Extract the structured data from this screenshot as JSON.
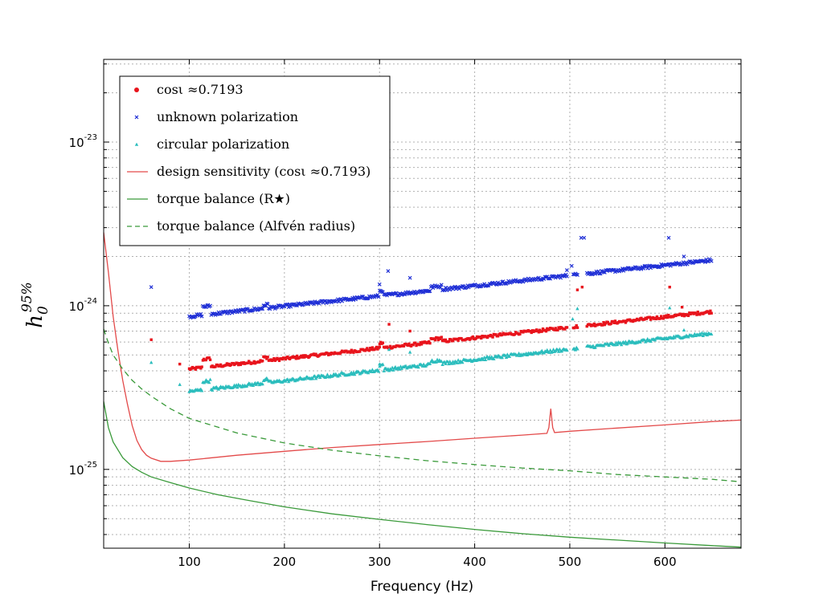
{
  "chart_data": {
    "type": "scatter",
    "xlabel": "Frequency (Hz)",
    "ylabel": {
      "base": "h",
      "sub": "0",
      "sup": "95%"
    },
    "xlim": [
      10,
      680
    ],
    "ylim": [
      3.3e-26,
      3.2e-23
    ],
    "yscale": "log",
    "grid": true,
    "legend_position": "top-left",
    "x_ticks": [
      100,
      200,
      300,
      400,
      500,
      600
    ],
    "y_ticks": [
      {
        "value": 1e-23,
        "mantissa": "10",
        "exponent": "-23"
      },
      {
        "value": 1e-24,
        "mantissa": "10",
        "exponent": "-24"
      },
      {
        "value": 1e-25,
        "mantissa": "10",
        "exponent": "-25"
      }
    ],
    "series": [
      {
        "name": "cosι ≈0.7193",
        "kind": "scatter",
        "marker": "dot",
        "color": "#e8141c",
        "base": {
          "f0": 100,
          "v0": 4.1e-25,
          "f1": 650,
          "v1": 9.2e-25
        },
        "outliers": [
          [
            60,
            6.2e-25
          ],
          [
            90,
            4.4e-25
          ],
          [
            300,
            5.6e-25
          ],
          [
            310,
            7.7e-25
          ],
          [
            332,
            7e-25
          ],
          [
            508,
            1.25e-24
          ],
          [
            513,
            1.3e-24
          ],
          [
            605,
            1.3e-24
          ],
          [
            618,
            9.8e-25
          ]
        ]
      },
      {
        "name": "unknown polarization",
        "kind": "scatter",
        "marker": "x",
        "color": "#1f2fd6",
        "base": {
          "f0": 100,
          "v0": 8.6e-25,
          "f1": 650,
          "v1": 1.9e-24
        },
        "outliers": [
          [
            60,
            1.3e-24
          ],
          [
            300,
            1.35e-24
          ],
          [
            309,
            1.63e-24
          ],
          [
            332,
            1.48e-24
          ],
          [
            497,
            1.65e-24
          ],
          [
            502,
            1.75e-24
          ],
          [
            512,
            2.6e-24
          ],
          [
            515,
            2.6e-24
          ],
          [
            604,
            2.6e-24
          ],
          [
            620,
            2e-24
          ]
        ]
      },
      {
        "name": "circular polarization",
        "kind": "scatter",
        "marker": "triangle",
        "color": "#2bbdbd",
        "base": {
          "f0": 100,
          "v0": 3e-25,
          "f1": 650,
          "v1": 6.8e-25
        },
        "outliers": [
          [
            60,
            4.5e-25
          ],
          [
            90,
            3.3e-25
          ],
          [
            300,
            4.4e-25
          ],
          [
            310,
            5.4e-25
          ],
          [
            332,
            5.2e-25
          ],
          [
            503,
            8.3e-25
          ],
          [
            508,
            9.6e-25
          ],
          [
            605,
            9.7e-25
          ],
          [
            620,
            7.1e-25
          ]
        ]
      },
      {
        "name": "design sensitivity (cosι ≈0.7193)",
        "kind": "line",
        "style": "solid",
        "color": "#e34a4a",
        "points": [
          [
            10,
            2.8e-24
          ],
          [
            15,
            1.6e-24
          ],
          [
            20,
            8.6e-25
          ],
          [
            25,
            5.3e-25
          ],
          [
            30,
            3.5e-25
          ],
          [
            35,
            2.5e-25
          ],
          [
            40,
            1.85e-25
          ],
          [
            45,
            1.5e-25
          ],
          [
            50,
            1.32e-25
          ],
          [
            55,
            1.22e-25
          ],
          [
            60,
            1.17e-25
          ],
          [
            70,
            1.12e-25
          ],
          [
            80,
            1.12e-25
          ],
          [
            100,
            1.14e-25
          ],
          [
            150,
            1.22e-25
          ],
          [
            200,
            1.29e-25
          ],
          [
            250,
            1.36e-25
          ],
          [
            300,
            1.42e-25
          ],
          [
            350,
            1.48e-25
          ],
          [
            400,
            1.55e-25
          ],
          [
            450,
            1.62e-25
          ],
          [
            476,
            1.66e-25
          ],
          [
            478,
            1.8e-25
          ],
          [
            480,
            2.35e-25
          ],
          [
            482,
            1.8e-25
          ],
          [
            484,
            1.68e-25
          ],
          [
            500,
            1.71e-25
          ],
          [
            550,
            1.79e-25
          ],
          [
            600,
            1.87e-25
          ],
          [
            650,
            1.96e-25
          ],
          [
            680,
            2e-25
          ]
        ]
      },
      {
        "name": "torque balance (R★)",
        "kind": "line",
        "style": "solid",
        "color": "#3a9a3a",
        "points": [
          [
            10,
            2.6e-25
          ],
          [
            15,
            1.8e-25
          ],
          [
            20,
            1.47e-25
          ],
          [
            30,
            1.18e-25
          ],
          [
            40,
            1.04e-25
          ],
          [
            50,
            9.6e-26
          ],
          [
            60,
            9e-26
          ],
          [
            80,
            8.3e-26
          ],
          [
            100,
            7.7e-26
          ],
          [
            130,
            7e-26
          ],
          [
            160,
            6.5e-26
          ],
          [
            200,
            5.9e-26
          ],
          [
            250,
            5.35e-26
          ],
          [
            300,
            4.95e-26
          ],
          [
            350,
            4.6e-26
          ],
          [
            400,
            4.3e-26
          ],
          [
            450,
            4.05e-26
          ],
          [
            500,
            3.85e-26
          ],
          [
            550,
            3.7e-26
          ],
          [
            600,
            3.55e-26
          ],
          [
            650,
            3.42e-26
          ],
          [
            680,
            3.35e-26
          ]
        ]
      },
      {
        "name": "torque balance (Alfvén radius)",
        "kind": "line",
        "style": "dashed",
        "color": "#3a9a3a",
        "points": [
          [
            10,
            7.2e-25
          ],
          [
            15,
            5.9e-25
          ],
          [
            20,
            5e-25
          ],
          [
            30,
            4.1e-25
          ],
          [
            40,
            3.5e-25
          ],
          [
            50,
            3.1e-25
          ],
          [
            60,
            2.8e-25
          ],
          [
            80,
            2.35e-25
          ],
          [
            100,
            2.05e-25
          ],
          [
            150,
            1.67e-25
          ],
          [
            200,
            1.45e-25
          ],
          [
            250,
            1.31e-25
          ],
          [
            300,
            1.21e-25
          ],
          [
            350,
            1.13e-25
          ],
          [
            400,
            1.07e-25
          ],
          [
            450,
            1.02e-25
          ],
          [
            500,
            9.8e-26
          ],
          [
            550,
            9.3e-26
          ],
          [
            600,
            9e-26
          ],
          [
            650,
            8.7e-26
          ],
          [
            680,
            8.4e-26
          ]
        ]
      }
    ]
  }
}
